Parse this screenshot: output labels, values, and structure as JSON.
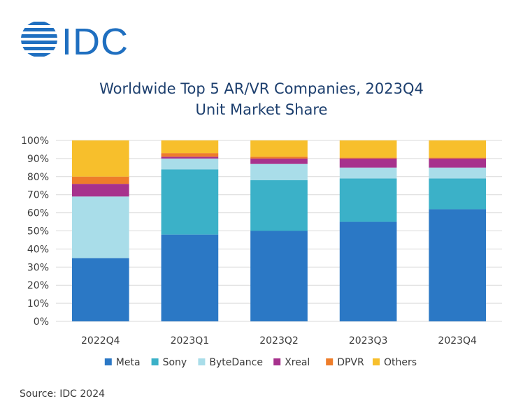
{
  "brand": {
    "name": "IDC",
    "color": "#1f6fc0"
  },
  "chart_data": {
    "type": "bar",
    "stacked": true,
    "title_line1": "Worldwide Top 5 AR/VR Companies, 2023Q4",
    "title_line2": "Unit Market Share",
    "categories": [
      "2022Q4",
      "2023Q1",
      "2023Q2",
      "2023Q3",
      "2023Q4"
    ],
    "yticks": [
      "0%",
      "10%",
      "20%",
      "30%",
      "40%",
      "50%",
      "60%",
      "70%",
      "80%",
      "90%",
      "100%"
    ],
    "ylim": [
      0,
      100
    ],
    "grid": true,
    "legend_position": "bottom",
    "series": [
      {
        "name": "Meta",
        "color": "#2b78c5",
        "values": [
          35,
          48,
          50,
          55,
          62
        ]
      },
      {
        "name": "Sony",
        "color": "#3bb1c8",
        "values": [
          0,
          36,
          28,
          24,
          17
        ]
      },
      {
        "name": "ByteDance",
        "color": "#a9dde9",
        "values": [
          34,
          6,
          9,
          6,
          6
        ]
      },
      {
        "name": "Xreal",
        "color": "#a7328d",
        "values": [
          7,
          1,
          3,
          5,
          5
        ]
      },
      {
        "name": "DPVR",
        "color": "#ee7d2a",
        "values": [
          4,
          2,
          1,
          0.5,
          0.5
        ]
      },
      {
        "name": "Others",
        "color": "#f7bf2c",
        "values": [
          20,
          7,
          9,
          9.5,
          9.5
        ]
      }
    ]
  },
  "source": "Source: IDC 2024"
}
